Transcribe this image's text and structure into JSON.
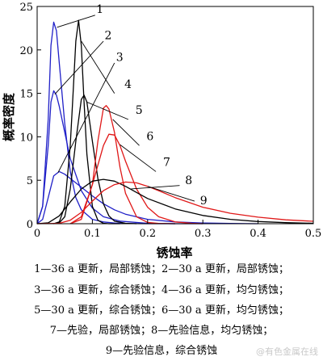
{
  "chart_data": {
    "type": "line",
    "xlabel": "锈蚀率",
    "ylabel": "概率密度",
    "xlim": [
      0,
      0.5
    ],
    "ylim": [
      0,
      25
    ],
    "xticks": [
      "0",
      "0.1",
      "0.2",
      "0.3",
      "0.4",
      "0.5"
    ],
    "yticks": [
      "0",
      "5",
      "10",
      "15",
      "20",
      "25"
    ],
    "grid": false,
    "series": [
      {
        "name": "1",
        "color": "#2020c8",
        "x": [
          0.0,
          0.01,
          0.02,
          0.025,
          0.03,
          0.035,
          0.04,
          0.05,
          0.06,
          0.07,
          0.08,
          0.1,
          0.12,
          0.14,
          0.16,
          0.2,
          0.25
        ],
        "y": [
          0,
          2,
          12,
          20.5,
          23.2,
          22.2,
          18.5,
          11.5,
          6,
          3,
          1.6,
          0.5,
          0.2,
          0.08,
          0.03,
          0,
          0
        ]
      },
      {
        "name": "2",
        "color": "#2020c8",
        "x": [
          0.0,
          0.01,
          0.02,
          0.025,
          0.03,
          0.035,
          0.04,
          0.05,
          0.06,
          0.08,
          0.1,
          0.12,
          0.15,
          0.2,
          0.25,
          0.3
        ],
        "y": [
          0,
          2,
          9,
          14,
          15.3,
          14.8,
          13.5,
          10.5,
          7.5,
          3.8,
          1.8,
          0.8,
          0.3,
          0.05,
          0,
          0
        ]
      },
      {
        "name": "3",
        "color": "#2020c8",
        "x": [
          0.0,
          0.01,
          0.02,
          0.03,
          0.04,
          0.05,
          0.06,
          0.08,
          0.1,
          0.12,
          0.14,
          0.16,
          0.2,
          0.25,
          0.3,
          0.35,
          0.4
        ],
        "y": [
          0,
          0.5,
          3,
          5.5,
          6,
          5.7,
          5.2,
          4.2,
          3.2,
          2.3,
          1.6,
          1.1,
          0.5,
          0.2,
          0.08,
          0.03,
          0
        ]
      },
      {
        "name": "4",
        "color": "#000000",
        "x": [
          0.03,
          0.04,
          0.05,
          0.06,
          0.065,
          0.07,
          0.075,
          0.08,
          0.085,
          0.09,
          0.1,
          0.11,
          0.12,
          0.13,
          0.15
        ],
        "y": [
          0,
          0.2,
          2,
          9,
          15,
          21,
          23.4,
          20.5,
          14,
          8,
          2,
          0.4,
          0.05,
          0,
          0
        ]
      },
      {
        "name": "5",
        "color": "#000000",
        "x": [
          0.03,
          0.04,
          0.05,
          0.06,
          0.07,
          0.08,
          0.085,
          0.09,
          0.1,
          0.11,
          0.12,
          0.13,
          0.14,
          0.16,
          0.18
        ],
        "y": [
          0,
          0.1,
          0.8,
          4,
          9.5,
          14.3,
          14.8,
          14,
          9.5,
          5.2,
          2.3,
          0.9,
          0.3,
          0.05,
          0
        ]
      },
      {
        "name": "6",
        "color": "#e01818",
        "x": [
          0.06,
          0.08,
          0.1,
          0.11,
          0.12,
          0.125,
          0.13,
          0.14,
          0.15,
          0.16,
          0.18,
          0.2,
          0.22,
          0.25
        ],
        "y": [
          0,
          0.5,
          4.5,
          9.5,
          13.3,
          13.6,
          13.2,
          10.5,
          6.5,
          3.5,
          0.8,
          0.15,
          0.03,
          0
        ]
      },
      {
        "name": "7",
        "color": "#e01818",
        "x": [
          0.06,
          0.08,
          0.1,
          0.12,
          0.13,
          0.14,
          0.15,
          0.16,
          0.18,
          0.2,
          0.22,
          0.25,
          0.28,
          0.3
        ],
        "y": [
          0,
          0.8,
          4.5,
          9,
          10.3,
          10.2,
          9,
          7.2,
          4,
          1.9,
          0.8,
          0.2,
          0.05,
          0
        ]
      },
      {
        "name": "8",
        "color": "#000000",
        "x": [
          0.0,
          0.02,
          0.04,
          0.06,
          0.08,
          0.1,
          0.12,
          0.14,
          0.16,
          0.18,
          0.2,
          0.25,
          0.3,
          0.35,
          0.4,
          0.45,
          0.5
        ],
        "y": [
          0,
          0.1,
          0.9,
          2.5,
          4,
          4.9,
          5.1,
          4.9,
          4.3,
          3.6,
          2.9,
          1.7,
          0.95,
          0.5,
          0.25,
          0.12,
          0.05
        ]
      },
      {
        "name": "9",
        "color": "#e01818",
        "x": [
          0.0,
          0.04,
          0.06,
          0.08,
          0.1,
          0.12,
          0.14,
          0.16,
          0.18,
          0.2,
          0.22,
          0.25,
          0.3,
          0.35,
          0.4,
          0.45,
          0.5
        ],
        "y": [
          0,
          0.05,
          0.4,
          1.3,
          2.6,
          3.8,
          4.5,
          4.8,
          4.7,
          4.3,
          3.8,
          3,
          1.9,
          1.2,
          0.75,
          0.45,
          0.28
        ]
      }
    ],
    "annotations": [
      "1",
      "2",
      "3",
      "4",
      "5",
      "6",
      "7",
      "8",
      "9"
    ]
  },
  "captions": [
    "1—36 a 更新，局部锈蚀；2—30 a 更新，局部锈蚀；",
    "3—36 a 更新，综合锈蚀；4—36 a 更新，均匀锈蚀；",
    "5—30 a 更新，综合锈蚀；6—30 a 更新，均匀锈蚀；",
    "7—先验，局部锈蚀；8—先验信息，均匀锈蚀；",
    "9—先验信息，综合锈蚀"
  ],
  "watermark": "@有色金属在线"
}
